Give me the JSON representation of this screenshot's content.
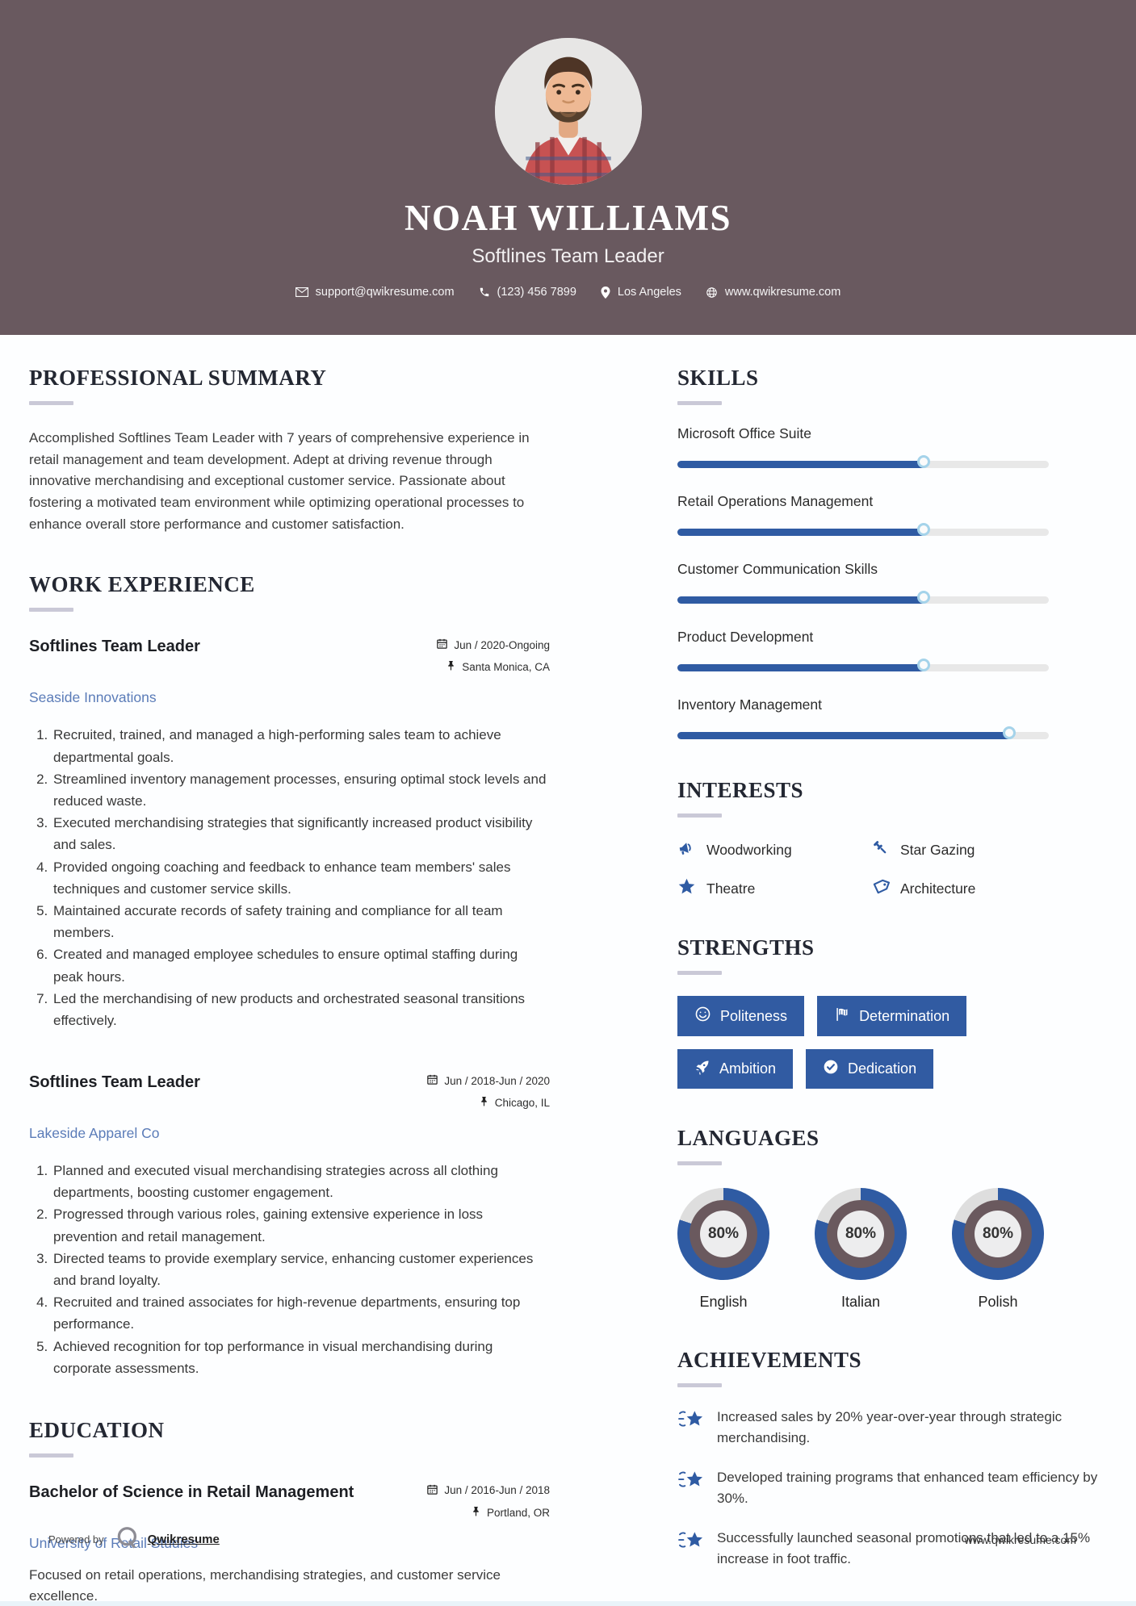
{
  "header": {
    "name": "NOAH WILLIAMS",
    "title": "Softlines Team Leader",
    "contact": {
      "email": {
        "icon": "envelope-icon",
        "text": "support@qwikresume.com"
      },
      "phone": {
        "icon": "phone-icon",
        "text": "(123) 456 7899"
      },
      "location": {
        "icon": "map-pin-icon",
        "text": "Los Angeles"
      },
      "website": {
        "icon": "globe-icon",
        "text": "www.qwikresume.com"
      }
    }
  },
  "sections": {
    "summary": {
      "heading": "PROFESSIONAL SUMMARY",
      "text": "Accomplished Softlines Team Leader with 7 years of comprehensive experience in retail management and team development. Adept at driving revenue through innovative merchandising and exceptional customer service. Passionate about fostering a motivated team environment while optimizing operational processes to enhance overall store performance and customer satisfaction."
    },
    "experience": {
      "heading": "WORK EXPERIENCE",
      "jobs": [
        {
          "title": "Softlines Team Leader",
          "company": "Seaside Innovations",
          "dates": "Jun / 2020-Ongoing",
          "location": "Santa Monica, CA",
          "bullets": [
            "Recruited, trained, and managed a high-performing sales team to achieve departmental goals.",
            "Streamlined inventory management processes, ensuring optimal stock levels and reduced waste.",
            "Executed merchandising strategies that significantly increased product visibility and sales.",
            "Provided ongoing coaching and feedback to enhance team members' sales techniques and customer service skills.",
            "Maintained accurate records of safety training and compliance for all team members.",
            "Created and managed employee schedules to ensure optimal staffing during peak hours.",
            "Led the merchandising of new products and orchestrated seasonal transitions effectively."
          ]
        },
        {
          "title": "Softlines Team Leader",
          "company": "Lakeside Apparel Co",
          "dates": "Jun / 2018-Jun / 2020",
          "location": "Chicago, IL",
          "bullets": [
            "Planned and executed visual merchandising strategies across all clothing departments, boosting customer engagement.",
            "Progressed through various roles, gaining extensive experience in loss prevention and retail management.",
            "Directed teams to provide exemplary service, enhancing customer experiences and brand loyalty.",
            "Recruited and trained associates for high-revenue departments, ensuring top performance.",
            "Achieved recognition for top performance in visual merchandising during corporate assessments."
          ]
        }
      ]
    },
    "education": {
      "heading": "EDUCATION",
      "degree": "Bachelor of Science in Retail Management",
      "school": "University of Retail Studies",
      "dates": "Jun / 2016-Jun / 2018",
      "location": "Portland, OR",
      "description": "Focused on retail operations, merchandising strategies, and customer service excellence."
    },
    "skills": {
      "heading": "SKILLS",
      "items": [
        {
          "name": "Microsoft Office Suite",
          "level": 67
        },
        {
          "name": "Retail Operations Management",
          "level": 67
        },
        {
          "name": "Customer Communication Skills",
          "level": 67
        },
        {
          "name": "Product Development",
          "level": 67
        },
        {
          "name": "Inventory Management",
          "level": 90
        }
      ]
    },
    "interests": {
      "heading": "INTERESTS",
      "items": [
        {
          "label": "Woodworking",
          "icon": "megaphone-icon"
        },
        {
          "label": "Star Gazing",
          "icon": "gavel-icon"
        },
        {
          "label": "Theatre",
          "icon": "star-icon"
        },
        {
          "label": "Architecture",
          "icon": "tag-icon"
        }
      ]
    },
    "strengths": {
      "heading": "STRENGTHS",
      "items": [
        {
          "label": "Politeness",
          "icon": "smiley-icon"
        },
        {
          "label": "Determination",
          "icon": "flag-icon"
        },
        {
          "label": "Ambition",
          "icon": "rocket-icon"
        },
        {
          "label": "Dedication",
          "icon": "check-circle-icon"
        }
      ]
    },
    "languages": {
      "heading": "LANGUAGES",
      "items": [
        {
          "label": "English",
          "percent": 80
        },
        {
          "label": "Italian",
          "percent": 80
        },
        {
          "label": "Polish",
          "percent": 80
        }
      ]
    },
    "achievements": {
      "heading": "ACHIEVEMENTS",
      "icon": "shooting-star-icon",
      "items": [
        "Increased sales by 20% year-over-year through strategic merchandising.",
        "Developed training programs that enhanced team efficiency by 30%.",
        "Successfully launched seasonal promotions that led to a 15% increase in foot traffic."
      ]
    }
  },
  "footer": {
    "powered_by": "Powered by",
    "brand": "Qwikresume",
    "website": "www.qwikresume.com"
  },
  "colors": {
    "header_bg": "#69595f",
    "accent_blue": "#2f5ba3",
    "link_blue": "#5b7cb8",
    "heading_underline": "#cac9d7"
  }
}
